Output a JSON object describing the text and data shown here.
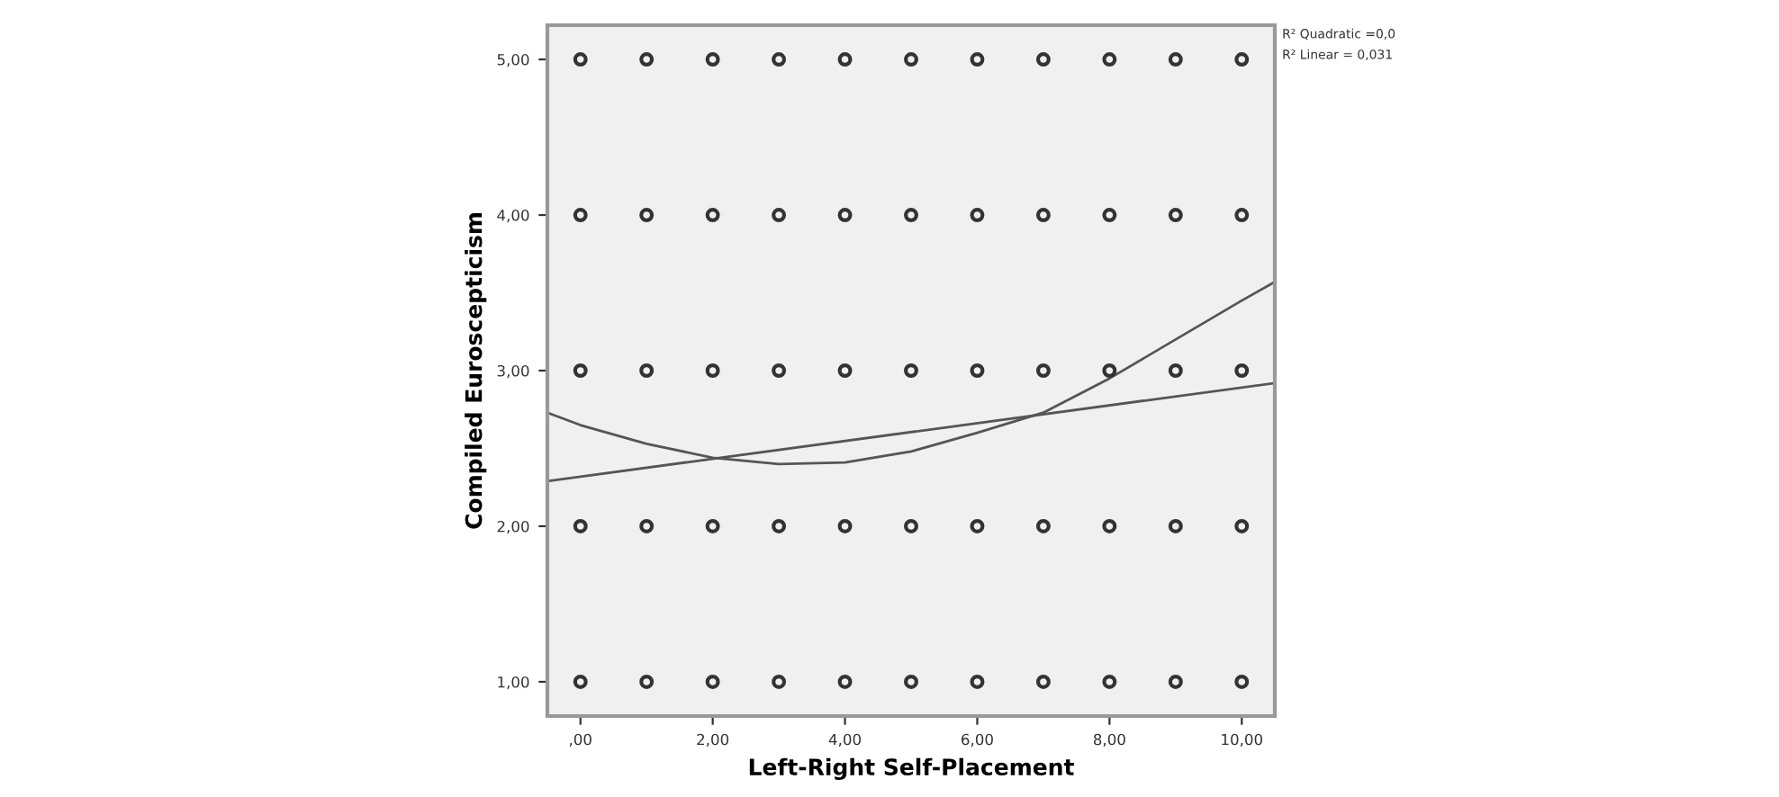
{
  "chart_data": {
    "type": "scatter",
    "xlabel": "Left-Right Self-Placement",
    "ylabel": "Compiled Euroscepticism",
    "xlim": [
      -0.5,
      10.5
    ],
    "ylim": [
      0.78,
      5.22
    ],
    "xticks": [
      {
        "value": 0,
        "label": ",00"
      },
      {
        "value": 2,
        "label": "2,00"
      },
      {
        "value": 4,
        "label": "4,00"
      },
      {
        "value": 6,
        "label": "6,00"
      },
      {
        "value": 8,
        "label": "8,00"
      },
      {
        "value": 10,
        "label": "10,00"
      }
    ],
    "yticks": [
      {
        "value": 1,
        "label": "1,00"
      },
      {
        "value": 2,
        "label": "2,00"
      },
      {
        "value": 3,
        "label": "3,00"
      },
      {
        "value": 4,
        "label": "4,00"
      },
      {
        "value": 5,
        "label": "5,00"
      }
    ],
    "grid": false,
    "legend": false,
    "annotations": [
      "R² Quadratic =0,0",
      "R² Linear = 0,031"
    ],
    "series": [
      {
        "marker": "circle",
        "color": "#333333",
        "x": [
          0,
          1,
          2,
          3,
          4,
          5,
          6,
          7,
          8,
          9,
          10,
          0,
          1,
          2,
          3,
          4,
          5,
          6,
          7,
          8,
          9,
          10,
          0,
          1,
          2,
          3,
          4,
          5,
          6,
          7,
          8,
          9,
          10,
          0,
          1,
          2,
          3,
          4,
          5,
          6,
          7,
          8,
          9,
          10,
          0,
          1,
          2,
          3,
          4,
          5,
          6,
          7,
          8,
          9,
          10
        ],
        "values": [
          1,
          1,
          1,
          1,
          1,
          1,
          1,
          1,
          1,
          1,
          1,
          2,
          2,
          2,
          2,
          2,
          2,
          2,
          2,
          2,
          2,
          2,
          3,
          3,
          3,
          3,
          3,
          3,
          3,
          3,
          3,
          3,
          3,
          4,
          4,
          4,
          4,
          4,
          4,
          4,
          4,
          4,
          4,
          4,
          5,
          5,
          5,
          5,
          5,
          5,
          5,
          5,
          5,
          5,
          5
        ]
      },
      {
        "type": "line",
        "marker": "none",
        "color": "#555555",
        "x": [
          -0.5,
          10.5
        ],
        "values": [
          2.29,
          2.92
        ]
      },
      {
        "type": "line",
        "marker": "none",
        "color": "#555555",
        "x": [
          -0.5,
          0,
          1,
          2,
          3,
          4,
          5,
          6,
          7,
          8,
          9,
          10,
          10.5
        ],
        "values": [
          2.73,
          2.65,
          2.53,
          2.44,
          2.4,
          2.41,
          2.48,
          2.6,
          2.73,
          2.95,
          3.2,
          3.45,
          3.57
        ]
      }
    ]
  }
}
